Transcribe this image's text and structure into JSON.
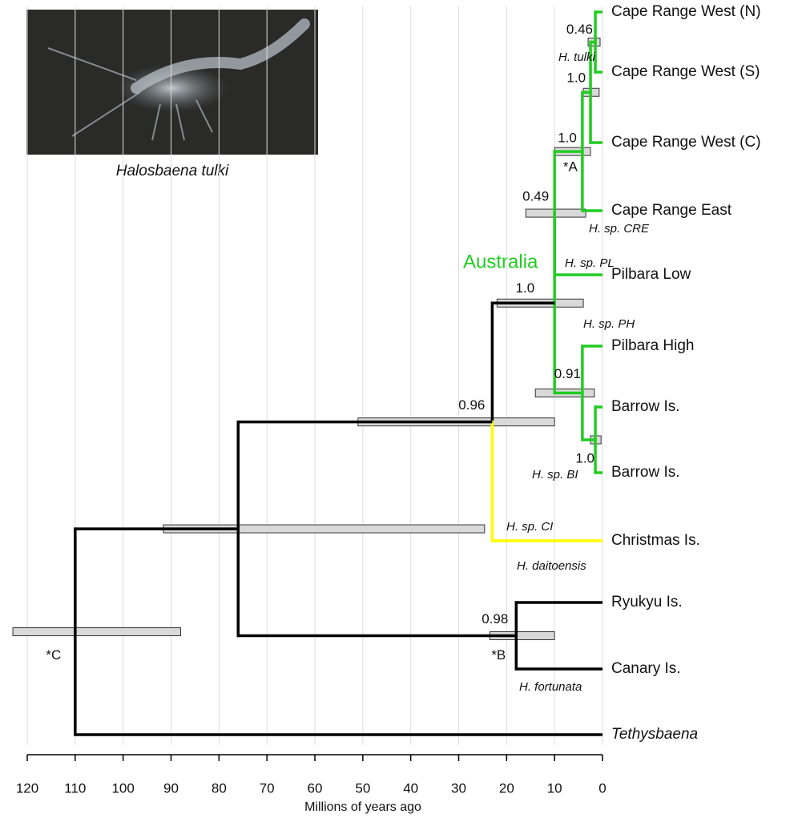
{
  "figure": {
    "caption": "Halosbaena tulki",
    "region_label": "Australia",
    "axis": {
      "label": "Millions of years ago",
      "xlim": [
        0,
        120
      ],
      "xticks": [
        120,
        110,
        100,
        90,
        80,
        70,
        60,
        50,
        40,
        30,
        20,
        10,
        0
      ]
    },
    "tips": [
      {
        "label": "Cape Range West (N)",
        "color": "#22cc22"
      },
      {
        "label": "Cape Range West (S)",
        "color": "#22cc22"
      },
      {
        "label": "Cape Range West (C)",
        "color": "#22cc22"
      },
      {
        "label": "Cape Range East",
        "color": "#22cc22"
      },
      {
        "label": "Pilbara Low",
        "color": "#22cc22"
      },
      {
        "label": "Pilbara High",
        "color": "#22cc22"
      },
      {
        "label": "Barrow Is.",
        "color": "#22cc22"
      },
      {
        "label": "Barrow Is.",
        "color": "#22cc22"
      },
      {
        "label": "Christmas Is.",
        "color": "#ffff00"
      },
      {
        "label": "Ryukyu Is.",
        "color": "#000000"
      },
      {
        "label": "Canary Is.",
        "color": "#000000"
      },
      {
        "label": "Tethysbaena",
        "color": "#000000",
        "italic": true
      }
    ],
    "nodes": [
      {
        "age": 1.5,
        "interval": [
          0.5,
          3
        ],
        "support": "0.46",
        "color": "#22cc22"
      },
      {
        "age": 2.5,
        "interval": [
          0.7,
          4
        ],
        "support": "1.0",
        "color": "#22cc22"
      },
      {
        "age": 4.2,
        "interval": [
          2.5,
          10
        ],
        "support": "1.0",
        "color": "#22cc22",
        "marker": "*A"
      },
      {
        "age": 10,
        "interval": [
          3.5,
          16
        ],
        "support": "0.49",
        "color": "#22cc22"
      },
      {
        "age": 1.5,
        "interval": [
          0.3,
          2.5
        ],
        "support": "1.0",
        "color": "#22cc22"
      },
      {
        "age": 4.2,
        "interval": [
          1.7,
          14
        ],
        "support": "0.91",
        "color": "#22cc22"
      },
      {
        "age": 10,
        "interval": [
          4,
          22
        ],
        "support": "1.0",
        "color": "#000000"
      },
      {
        "age": 23,
        "interval": [
          10,
          51
        ],
        "support": "0.96",
        "color": "#000000"
      },
      {
        "age": 18,
        "interval": [
          10,
          23.5
        ],
        "support": "0.98",
        "color": "#000000",
        "marker": "*B"
      },
      {
        "age": 76,
        "interval": [
          24.6,
          91.6
        ],
        "color": "#000000"
      },
      {
        "age": 110,
        "interval": [
          88,
          123
        ],
        "color": "#000000",
        "marker": "*C"
      }
    ],
    "annotations": [
      "H. tulki",
      "H. sp. CRE",
      "H. sp. PL",
      "H. sp. PH",
      "H. sp. BI",
      "H. sp. CI",
      "H. daitoensis",
      "H. fortunata"
    ]
  }
}
